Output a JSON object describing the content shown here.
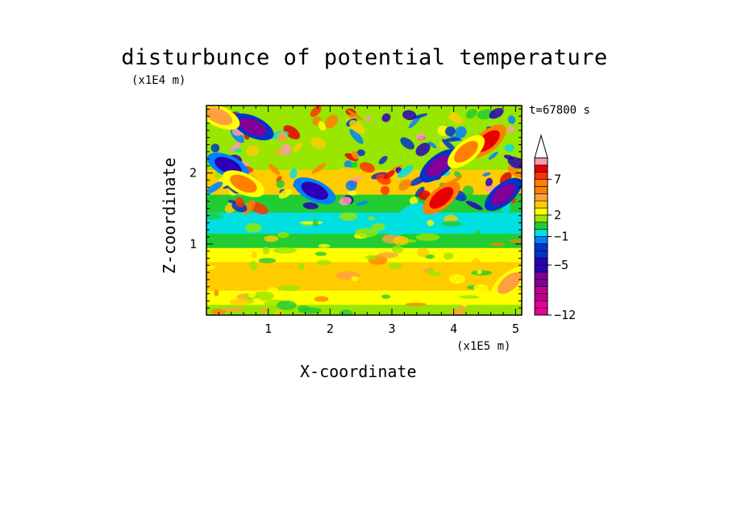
{
  "title": "disturbunce of potential temperature",
  "time_label": "t=67800 s",
  "chart_data": {
    "type": "heatmap",
    "title": "disturbunce of potential temperature",
    "xlabel": "X-coordinate",
    "ylabel": "Z-coordinate",
    "x_unit": "(x1E5 m)",
    "y_unit": "(x1E4 m)",
    "xlim": [
      0.0,
      5.1
    ],
    "ylim": [
      0.0,
      2.95
    ],
    "x_ticks": [
      "1",
      "2",
      "3",
      "4",
      "5"
    ],
    "y_ticks": [
      "1",
      "2"
    ],
    "colorbar": {
      "levels": [
        -12,
        -11,
        -10,
        -9,
        -8,
        -7,
        -6,
        -5,
        -4,
        -3,
        -2,
        -1,
        0,
        1,
        2,
        3,
        4,
        5,
        6,
        7,
        8,
        9,
        10
      ],
      "labels": [
        "-12",
        "-5",
        "-1",
        "2",
        "7"
      ],
      "extend": "max"
    },
    "bands": [
      {
        "z_from": 0.0,
        "z_to": 0.15,
        "value": 1.0
      },
      {
        "z_from": 0.15,
        "z_to": 0.35,
        "value": 2.5
      },
      {
        "z_from": 0.35,
        "z_to": 0.75,
        "value": 3.5
      },
      {
        "z_from": 0.75,
        "z_to": 0.95,
        "value": 2.0
      },
      {
        "z_from": 0.95,
        "z_to": 1.15,
        "value": 0.5
      },
      {
        "z_from": 1.15,
        "z_to": 1.45,
        "value": -0.5
      },
      {
        "z_from": 1.45,
        "z_to": 1.7,
        "value": 0.0
      },
      {
        "z_from": 1.7,
        "z_to": 2.05,
        "value": 3.0
      },
      {
        "z_from": 2.05,
        "z_to": 2.95,
        "value": 1.5
      }
    ],
    "features": [
      {
        "x": 0.75,
        "z": 2.65,
        "value": -7
      },
      {
        "x": 0.35,
        "z": 2.1,
        "value": -6
      },
      {
        "x": 1.75,
        "z": 1.75,
        "value": -6
      },
      {
        "x": 3.25,
        "z": 1.35,
        "value": -1
      },
      {
        "x": 3.75,
        "z": 2.1,
        "value": -8
      },
      {
        "x": 3.8,
        "z": 1.65,
        "value": 8
      },
      {
        "x": 4.55,
        "z": 2.45,
        "value": 8
      },
      {
        "x": 4.8,
        "z": 1.7,
        "value": -7
      },
      {
        "x": 4.2,
        "z": 2.3,
        "value": 5
      },
      {
        "x": 0.6,
        "z": 1.85,
        "value": 5
      },
      {
        "x": 4.9,
        "z": 0.45,
        "value": 4
      },
      {
        "x": 0.2,
        "z": 2.8,
        "value": 4
      }
    ]
  }
}
